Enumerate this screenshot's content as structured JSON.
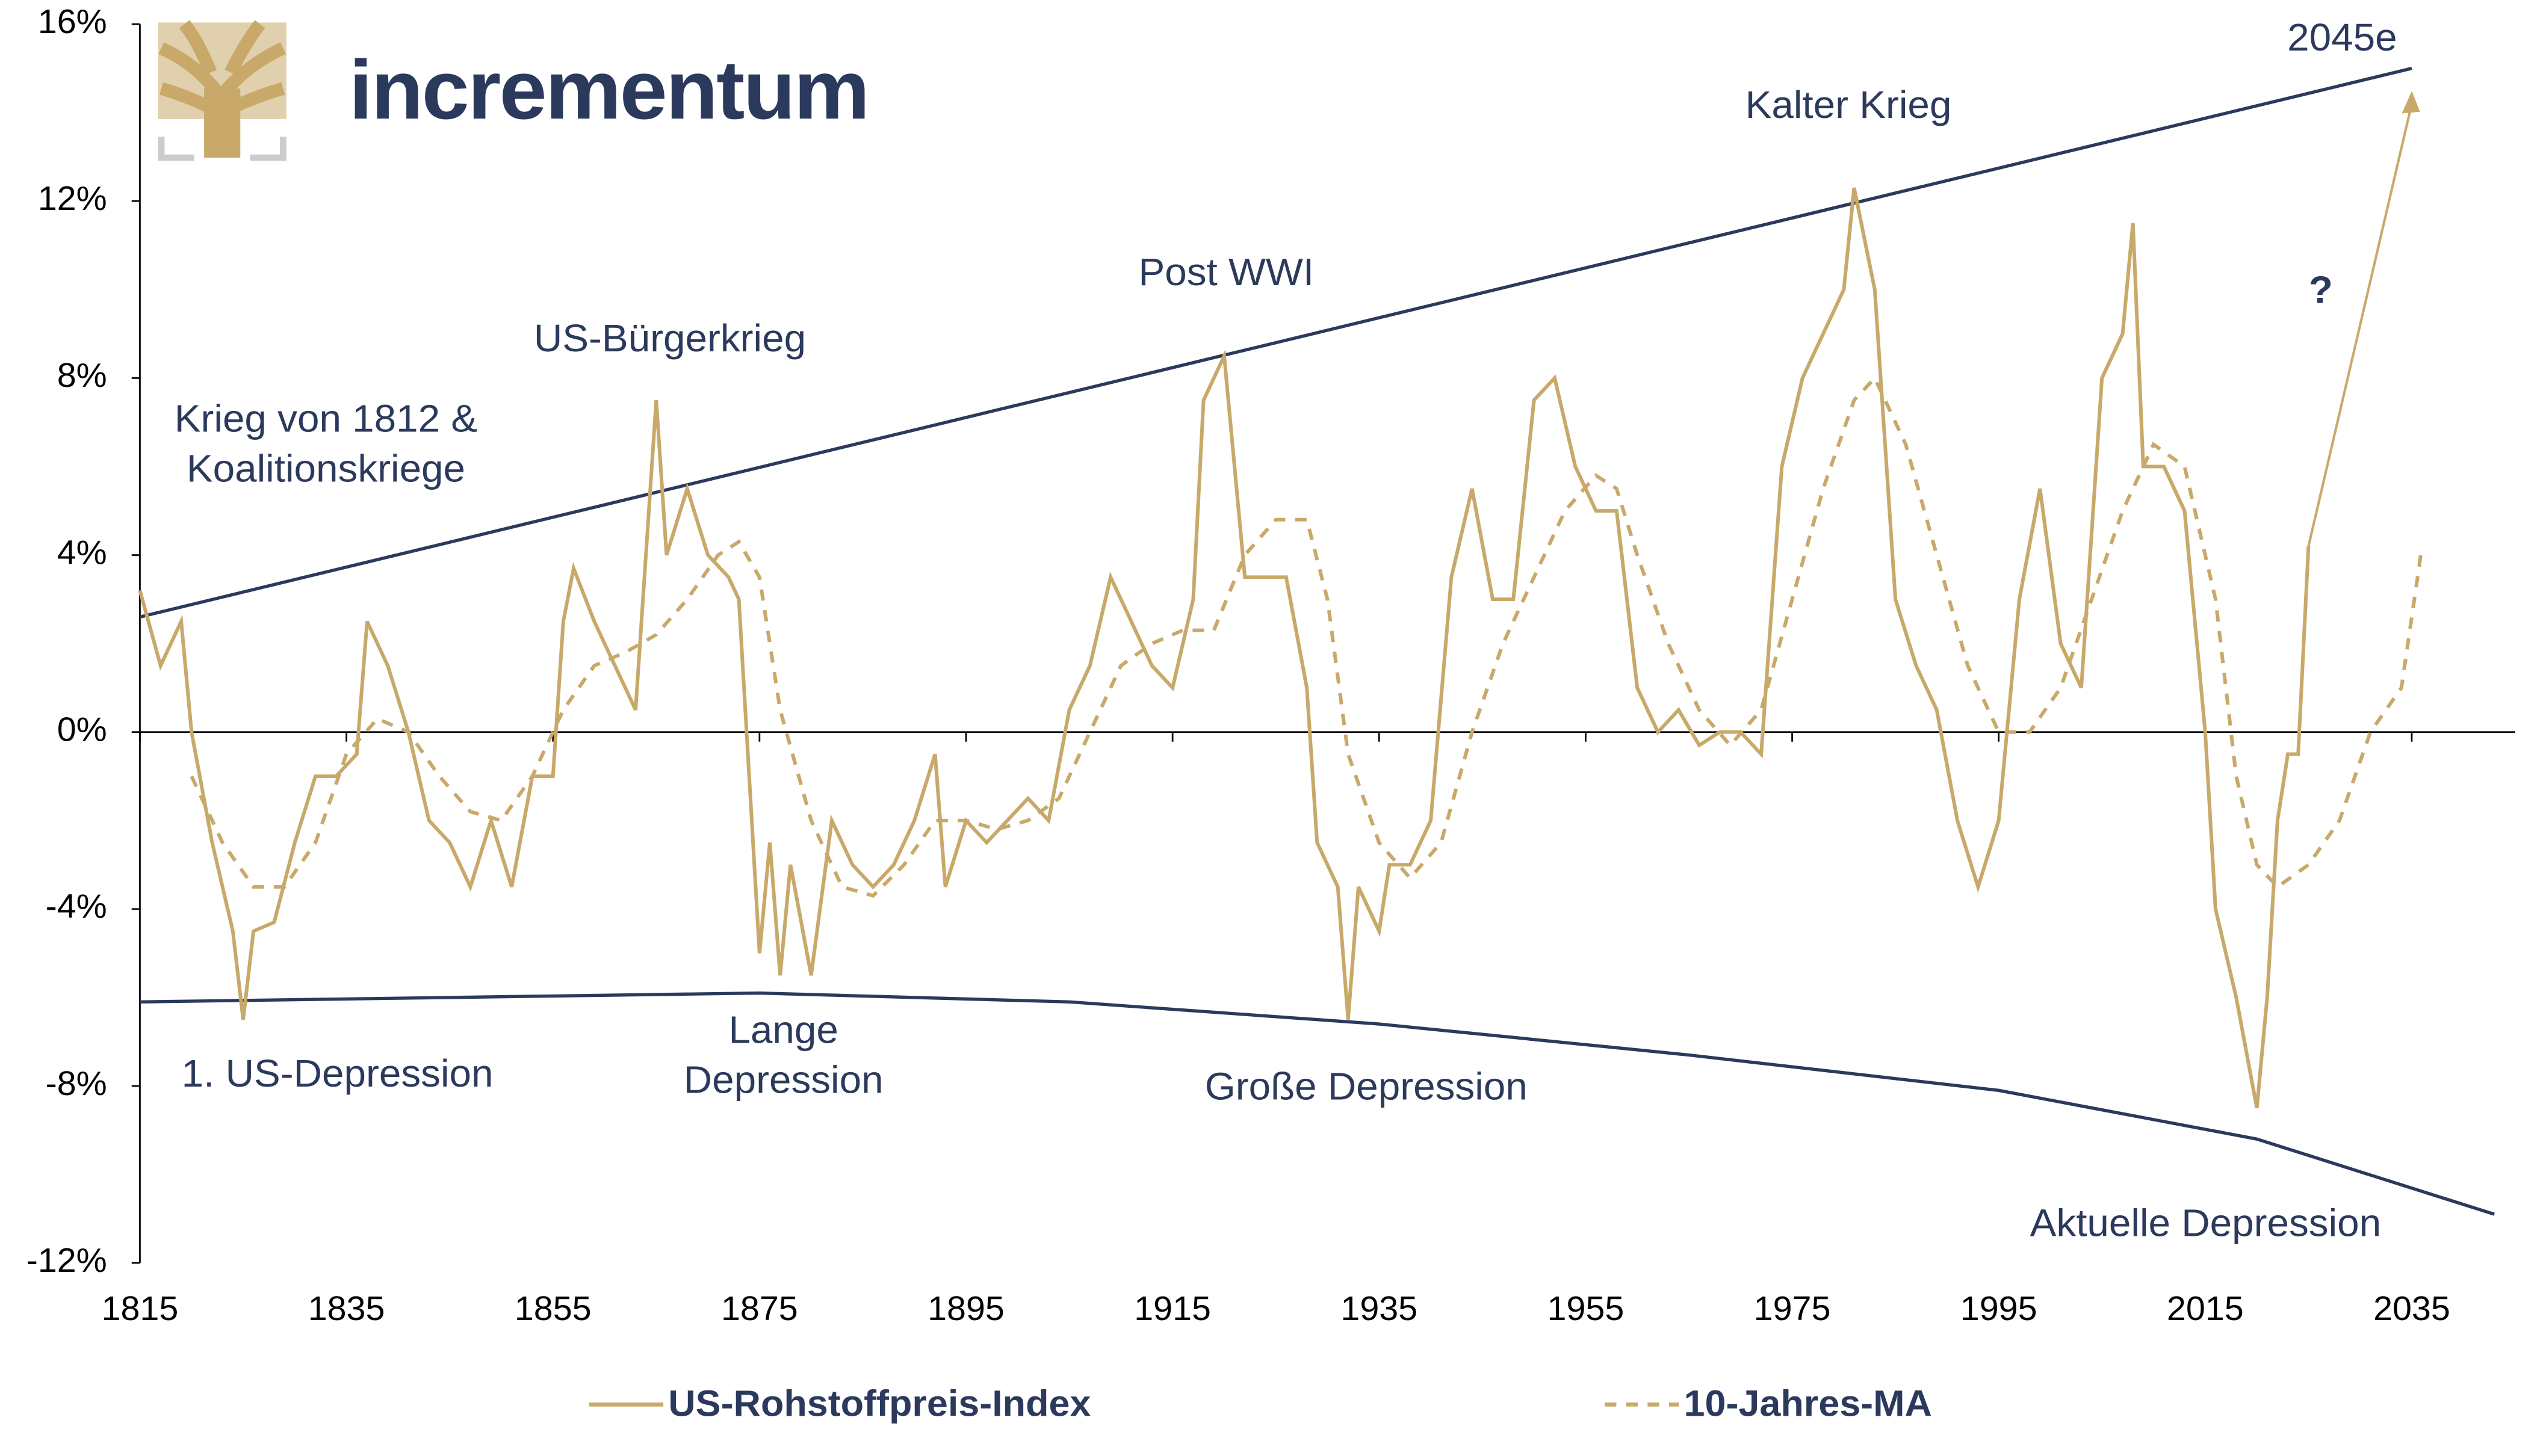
{
  "chart_data": {
    "type": "line",
    "logo": "incrementum",
    "xlim": [
      1815,
      2045
    ],
    "xticks": [
      1815,
      1835,
      1855,
      1875,
      1895,
      1915,
      1935,
      1955,
      1975,
      1995,
      2015,
      2035
    ],
    "ylim": [
      -12,
      16
    ],
    "yticks": [
      {
        "value": -12,
        "label": "-12%"
      },
      {
        "value": -8,
        "label": "-8%"
      },
      {
        "value": -4,
        "label": "-4%"
      },
      {
        "value": 0,
        "label": "0%"
      },
      {
        "value": 4,
        "label": "4%"
      },
      {
        "value": 8,
        "label": "8%"
      },
      {
        "value": 12,
        "label": "12%"
      },
      {
        "value": 16,
        "label": "16%"
      }
    ],
    "legend": "bottom",
    "series": [
      {
        "name": "US-Rohstoffpreis-Index",
        "color": "#c8a96a",
        "style": "solid",
        "x": [
          1815,
          1817,
          1819,
          1820,
          1822,
          1824,
          1825,
          1826,
          1828,
          1830,
          1832,
          1834,
          1836,
          1837,
          1839,
          1841,
          1843,
          1845,
          1847,
          1849,
          1851,
          1853,
          1855,
          1856,
          1857,
          1859,
          1861,
          1863,
          1865,
          1866,
          1868,
          1870,
          1872,
          1873,
          1874,
          1875,
          1876,
          1877,
          1878,
          1880,
          1882,
          1884,
          1886,
          1888,
          1890,
          1892,
          1893,
          1895,
          1897,
          1899,
          1901,
          1903,
          1905,
          1907,
          1909,
          1911,
          1913,
          1915,
          1917,
          1918,
          1919,
          1920,
          1921,
          1922,
          1924,
          1926,
          1928,
          1929,
          1931,
          1932,
          1933,
          1935,
          1936,
          1938,
          1940,
          1942,
          1944,
          1946,
          1948,
          1950,
          1952,
          1954,
          1956,
          1958,
          1960,
          1962,
          1964,
          1966,
          1968,
          1970,
          1972,
          1974,
          1976,
          1978,
          1980,
          1981,
          1983,
          1985,
          1987,
          1989,
          1991,
          1993,
          1995,
          1997,
          1999,
          2001,
          2003,
          2005,
          2007,
          2008,
          2009,
          2011,
          2013,
          2015,
          2016,
          2018,
          2020,
          2021,
          2022,
          2023,
          2024,
          2025
        ],
        "values": [
          3.2,
          1.5,
          2.5,
          0,
          -2.5,
          -4.5,
          -6.5,
          -4.5,
          -4.3,
          -2.5,
          -1,
          -1,
          -0.5,
          2.5,
          1.5,
          0,
          -2,
          -2.5,
          -3.5,
          -2,
          -3.5,
          -1,
          -1,
          2.5,
          3.7,
          2.5,
          1.5,
          0.5,
          7.5,
          4,
          5.5,
          4,
          3.5,
          3,
          -1,
          -5,
          -2.5,
          -5.5,
          -3,
          -5.5,
          -2,
          -3,
          -3.5,
          -3,
          -2,
          -0.5,
          -3.5,
          -2,
          -2.5,
          -2,
          -1.5,
          -2,
          0.5,
          1.5,
          3.5,
          2.5,
          1.5,
          1,
          3,
          7.5,
          8,
          8.5,
          6,
          3.5,
          3.5,
          3.5,
          1,
          -2.5,
          -3.5,
          -6.5,
          -3.5,
          -4.5,
          -3,
          -3,
          -2,
          3.5,
          5.5,
          3,
          3,
          7.5,
          8,
          6,
          5,
          5,
          1,
          0,
          0.5,
          -0.3,
          0,
          0,
          -0.5,
          6,
          8,
          9,
          10,
          12.3,
          10,
          3,
          1.5,
          0.5,
          -2,
          -3.5,
          -2,
          3,
          5.5,
          2,
          1,
          8,
          9,
          11.5,
          6,
          6,
          5,
          0,
          -4,
          -6,
          -8.5,
          -6,
          -2,
          -0.5,
          -0.5,
          4.2
        ]
      },
      {
        "name": "10-Jahres-MA",
        "color": "#c8a96a",
        "style": "dashed",
        "x": [
          1820,
          1823,
          1826,
          1829,
          1832,
          1835,
          1838,
          1841,
          1844,
          1847,
          1850,
          1853,
          1856,
          1859,
          1862,
          1865,
          1868,
          1871,
          1873,
          1875,
          1877,
          1880,
          1883,
          1886,
          1889,
          1892,
          1895,
          1898,
          1901,
          1904,
          1907,
          1910,
          1913,
          1916,
          1919,
          1922,
          1925,
          1928,
          1930,
          1932,
          1935,
          1938,
          1941,
          1944,
          1947,
          1950,
          1953,
          1956,
          1958,
          1960,
          1963,
          1966,
          1969,
          1972,
          1975,
          1978,
          1981,
          1983,
          1986,
          1989,
          1992,
          1995,
          1998,
          2001,
          2004,
          2007,
          2010,
          2013,
          2016,
          2018,
          2020,
          2022,
          2025,
          2028,
          2031,
          2034,
          2036
        ],
        "values": [
          -1,
          -2.5,
          -3.5,
          -3.5,
          -2.5,
          -0.5,
          0.3,
          0,
          -1,
          -1.8,
          -2,
          -1,
          0.5,
          1.5,
          1.8,
          2.2,
          3,
          4,
          4.3,
          3.5,
          0.5,
          -2,
          -3.5,
          -3.7,
          -3,
          -2,
          -2,
          -2.2,
          -2,
          -1.5,
          0,
          1.5,
          2,
          2.3,
          2.3,
          4,
          4.8,
          4.8,
          3,
          -0.5,
          -2.5,
          -3.3,
          -2.5,
          0,
          2,
          3.5,
          5,
          5.8,
          5.5,
          4,
          2,
          0.5,
          -0.3,
          0.5,
          3,
          5.5,
          7.5,
          8,
          6.5,
          4,
          1.5,
          0,
          0,
          1,
          3,
          5,
          6.5,
          6,
          3,
          -1,
          -3,
          -3.5,
          -3,
          -2,
          0,
          1,
          4.2
        ]
      }
    ],
    "trendlines": [
      {
        "color": "#2b3a5c",
        "x": [
          1815,
          2035
        ],
        "values": [
          2.6,
          15
        ]
      },
      {
        "color": "#2b3a5c",
        "x": [
          1815,
          1845,
          1875,
          1905,
          1935,
          1965,
          1995,
          2020,
          2043
        ],
        "values": [
          -6.1,
          -6.0,
          -5.9,
          -6.1,
          -6.6,
          -7.3,
          -8.1,
          -9.2,
          -10.9
        ]
      }
    ],
    "annotations": [
      "Krieg von 1812 &",
      "Koalitionskriege",
      "US-Bürgerkrieg",
      "Post WWI",
      "Kalter Krieg",
      "2045e",
      "?",
      "1. US-Depression",
      "Lange",
      "Depression",
      "Große Depression",
      "Aktuelle Depression"
    ]
  }
}
